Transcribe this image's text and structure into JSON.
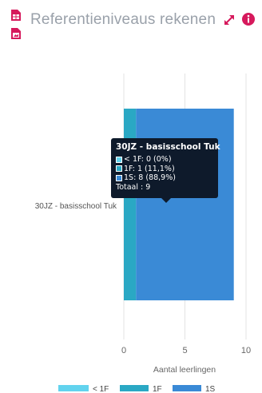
{
  "header": {
    "title": "Referentieniveaus rekenen",
    "icons": [
      "spreadsheet-icon",
      "pdf-icon",
      "expand-icon",
      "info-icon"
    ],
    "title_color": "#9aa1aa",
    "icon_color": "#d6195c"
  },
  "chart_data": {
    "type": "bar",
    "orientation": "horizontal",
    "stacked": true,
    "categories": [
      "30JZ - basisschool Tuk"
    ],
    "series": [
      {
        "name": "< 1F",
        "values": [
          0
        ],
        "color": "#62d3ee"
      },
      {
        "name": "1F",
        "values": [
          1
        ],
        "color": "#2aa8c4"
      },
      {
        "name": "1S",
        "values": [
          8
        ],
        "color": "#3a8ad6"
      }
    ],
    "xlabel": "Aantal leerlingen",
    "xlim": [
      0,
      10
    ],
    "xticks": [
      "0",
      "5",
      "10"
    ],
    "grid": true,
    "legend_position": "bottom"
  },
  "tooltip": {
    "title": "30JZ - basisschool Tuk",
    "rows": [
      {
        "label": "< 1F: 0 (0%)",
        "color": "#62d3ee"
      },
      {
        "label": "1F: 1 (11,1%)",
        "color": "#2aa8c4"
      },
      {
        "label": "1S: 8 (88,9%)",
        "color": "#3a8ad6"
      }
    ],
    "total": "Totaal : 9"
  }
}
